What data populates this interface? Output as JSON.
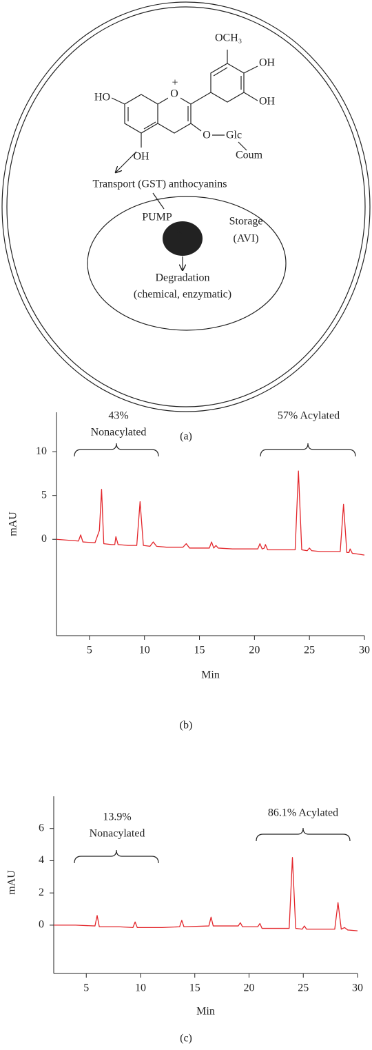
{
  "diagram": {
    "labels": {
      "och3": "OCH₃",
      "oh_b1": "OH",
      "oh_b2": "OH",
      "ho_a": "HO",
      "oh_a": "OH",
      "o_plus": "O",
      "plus": "+",
      "o_glc": "O",
      "glc": "Glc",
      "coum": "Coum",
      "transport": "Transport (GST) anthocyanins",
      "pump": "PUMP",
      "storage": "Storage",
      "avi": "(AVI)",
      "degradation": "Degradation",
      "degradation_kind": "(chemical, enzymatic)"
    },
    "caption": "(a)"
  },
  "chart_data": [
    {
      "type": "line",
      "caption": "(b)",
      "xlabel": "Min",
      "ylabel": "mAU",
      "x": [
        2,
        3,
        4,
        4.2,
        4.4,
        5.5,
        5.9,
        6.1,
        6.3,
        7,
        7.3,
        7.4,
        7.6,
        8.5,
        9.3,
        9.6,
        9.9,
        10.5,
        10.8,
        11.1,
        12,
        13.5,
        13.8,
        14.1,
        15,
        15.9,
        16.1,
        16.3,
        16.5,
        16.7,
        18,
        19,
        20.3,
        20.5,
        20.7,
        20.9,
        21.0,
        21.2,
        22,
        23.7,
        24.0,
        24.3,
        24.8,
        25.0,
        25.2,
        26,
        27,
        27.8,
        28.1,
        28.4,
        28.6,
        28.7,
        28.9,
        29.5,
        30
      ],
      "series": [
        {
          "color": "#e3262b",
          "values": [
            0,
            -0.1,
            -0.2,
            0.5,
            -0.3,
            -0.4,
            1,
            5.7,
            -0.5,
            -0.6,
            -0.6,
            0.3,
            -0.6,
            -0.7,
            -0.7,
            4.3,
            -0.7,
            -0.8,
            -0.3,
            -0.8,
            -0.9,
            -0.9,
            -0.5,
            -1.0,
            -1.0,
            -1.0,
            -0.3,
            -1.0,
            -0.7,
            -1.0,
            -1.1,
            -1.1,
            -1.1,
            -0.5,
            -1.1,
            -1.0,
            -0.6,
            -1.2,
            -1.2,
            -1.2,
            7.8,
            -1.2,
            -1.3,
            -1.0,
            -1.3,
            -1.4,
            -1.4,
            -1.4,
            4.0,
            -1.5,
            -1.5,
            -1.1,
            -1.6,
            -1.7,
            -1.8
          ]
        }
      ],
      "xlim": [
        2,
        30
      ],
      "ylim": [
        -11,
        14.5
      ],
      "xticks": [
        5,
        10,
        15,
        20,
        25,
        30
      ],
      "yticks": [
        0,
        5,
        10
      ],
      "annotations": [
        {
          "lines": [
            "43%",
            "Nonacylated"
          ]
        },
        {
          "lines": [
            "57% Acylated"
          ]
        }
      ]
    },
    {
      "type": "line",
      "caption": "(c)",
      "xlabel": "Min",
      "ylabel": "mAU",
      "x": [
        2,
        4,
        5.8,
        6.0,
        6.2,
        8,
        9.3,
        9.5,
        9.7,
        12,
        13.6,
        13.8,
        14.0,
        16.3,
        16.5,
        16.7,
        19.0,
        19.2,
        19.4,
        20.8,
        21.0,
        21.2,
        23,
        23.7,
        24.0,
        24.3,
        24.9,
        25.1,
        25.3,
        27,
        27.9,
        28.2,
        28.5,
        28.8,
        29.1,
        30
      ],
      "series": [
        {
          "color": "#e3262b",
          "values": [
            0,
            0,
            -0.05,
            0.6,
            -0.1,
            -0.1,
            -0.15,
            0.2,
            -0.15,
            -0.15,
            -0.1,
            0.3,
            -0.1,
            -0.05,
            0.5,
            -0.05,
            -0.05,
            0.15,
            -0.1,
            -0.1,
            0.1,
            -0.2,
            -0.2,
            -0.2,
            4.2,
            -0.2,
            -0.25,
            -0.05,
            -0.25,
            -0.25,
            -0.25,
            1.4,
            -0.25,
            -0.15,
            -0.3,
            -0.35
          ]
        }
      ],
      "xlim": [
        2,
        30
      ],
      "ylim": [
        -3,
        8
      ],
      "xticks": [
        5,
        10,
        15,
        20,
        25,
        30
      ],
      "yticks": [
        0,
        2,
        4,
        6
      ],
      "annotations": [
        {
          "lines": [
            "13.9%",
            "Nonacylated"
          ]
        },
        {
          "lines": [
            "86.1% Acylated"
          ]
        }
      ]
    }
  ]
}
